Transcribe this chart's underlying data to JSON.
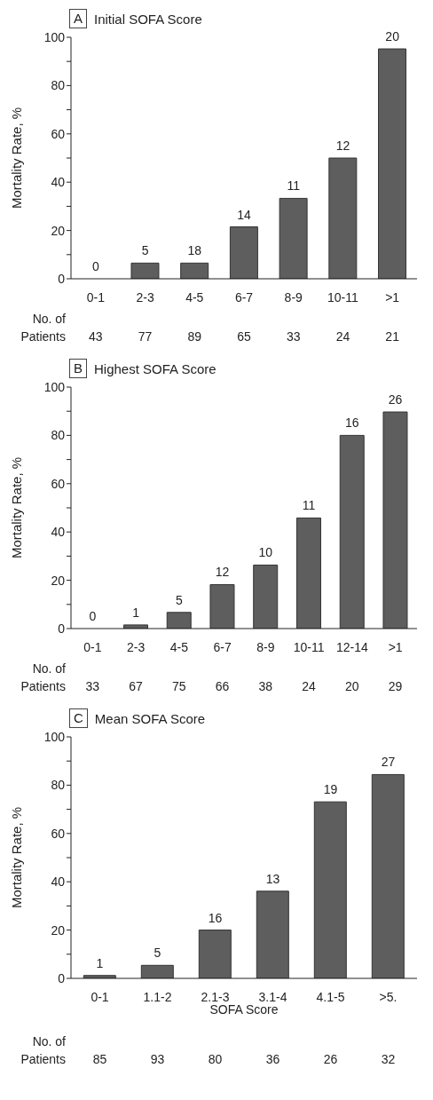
{
  "chart_data": [
    {
      "type": "bar",
      "title": "Initial SOFA Score",
      "ylabel": "Mortality Rate, %",
      "categories": [
        "0-1",
        "2-3",
        "4-5",
        "6-7",
        "8-9",
        "10-11",
        ">1"
      ],
      "values": [
        0,
        6.5,
        6.5,
        21.5,
        33.3,
        50,
        95.2
      ],
      "color": "#5e5e5e",
      "grid": false,
      "legend": false,
      "ylim": [
        0,
        100
      ],
      "yticks": [
        0,
        {
          "value": 10,
          "label": null
        },
        20,
        {
          "value": 30,
          "label": null
        },
        40,
        {
          "value": 50,
          "label": null
        },
        60,
        {
          "value": 70,
          "label": null
        },
        80,
        {
          "value": 90,
          "label": null
        },
        100
      ],
      "annotations": [
        "A",
        "No. of Patients",
        "43",
        "77",
        "89",
        "65",
        "33",
        "24",
        "21",
        {
          "text": "0",
          "x": "0-1",
          "y": 0
        },
        {
          "text": "5",
          "x": "2-3",
          "y": 6.5
        },
        {
          "text": "18",
          "x": "4-5",
          "y": 6.5
        },
        {
          "text": "14",
          "x": "6-7",
          "y": 21.5
        },
        {
          "text": "11",
          "x": "8-9",
          "y": 33.3
        },
        {
          "text": "12",
          "x": "10-11",
          "y": 50
        },
        {
          "text": "20",
          "x": ">1",
          "y": 95.2
        }
      ]
    },
    {
      "type": "bar",
      "title": "Highest SOFA Score",
      "ylabel": "Mortality Rate, %",
      "categories": [
        "0-1",
        "2-3",
        "4-5",
        "6-7",
        "8-9",
        "10-11",
        "12-14",
        ">1"
      ],
      "values": [
        0,
        1.5,
        6.7,
        18.2,
        26.3,
        45.8,
        80,
        89.7
      ],
      "color": "#5e5e5e",
      "grid": false,
      "legend": false,
      "ylim": [
        0,
        100
      ],
      "yticks": [
        0,
        {
          "value": 10,
          "label": null
        },
        20,
        {
          "value": 30,
          "label": null
        },
        40,
        {
          "value": 50,
          "label": null
        },
        60,
        {
          "value": 70,
          "label": null
        },
        80,
        {
          "value": 90,
          "label": null
        },
        100
      ],
      "annotations": [
        "B",
        "No. of Patients",
        "33",
        "67",
        "75",
        "66",
        "38",
        "24",
        "20",
        "29",
        {
          "text": "0",
          "x": "0-1",
          "y": 0
        },
        {
          "text": "1",
          "x": "2-3",
          "y": 1.5
        },
        {
          "text": "5",
          "x": "4-5",
          "y": 6.7
        },
        {
          "text": "12",
          "x": "6-7",
          "y": 18.2
        },
        {
          "text": "10",
          "x": "8-9",
          "y": 26.3
        },
        {
          "text": "11",
          "x": "10-11",
          "y": 45.8
        },
        {
          "text": "16",
          "x": "12-14",
          "y": 80
        },
        {
          "text": "26",
          "x": ">1",
          "y": 89.7
        }
      ]
    },
    {
      "type": "bar",
      "title": "Mean SOFA Score",
      "xlabel": "SOFA Score",
      "ylabel": "Mortality Rate, %",
      "categories": [
        "0-1",
        "1.1-2",
        "2.1-3",
        "3.1-4",
        "4.1-5",
        ">5."
      ],
      "values": [
        1.2,
        5.4,
        20,
        36.1,
        73.1,
        84.4
      ],
      "color": "#5e5e5e",
      "grid": false,
      "legend": false,
      "ylim": [
        0,
        100
      ],
      "yticks": [
        0,
        {
          "value": 10,
          "label": null
        },
        20,
        {
          "value": 30,
          "label": null
        },
        40,
        {
          "value": 50,
          "label": null
        },
        60,
        {
          "value": 70,
          "label": null
        },
        80,
        {
          "value": 90,
          "label": null
        },
        100
      ],
      "annotations": [
        "C",
        "No. of Patients",
        "85",
        "93",
        "80",
        "36",
        "26",
        "32",
        {
          "text": "1",
          "x": "0-1",
          "y": 1.2
        },
        {
          "text": "5",
          "x": "1.1-2",
          "y": 5.4
        },
        {
          "text": "16",
          "x": "2.1-3",
          "y": 20
        },
        {
          "text": "13",
          "x": "3.1-4",
          "y": 36.1
        },
        {
          "text": "19",
          "x": "4.1-5",
          "y": 73.1
        },
        {
          "text": "27",
          "x": ">5.",
          "y": 84.4
        }
      ]
    }
  ]
}
